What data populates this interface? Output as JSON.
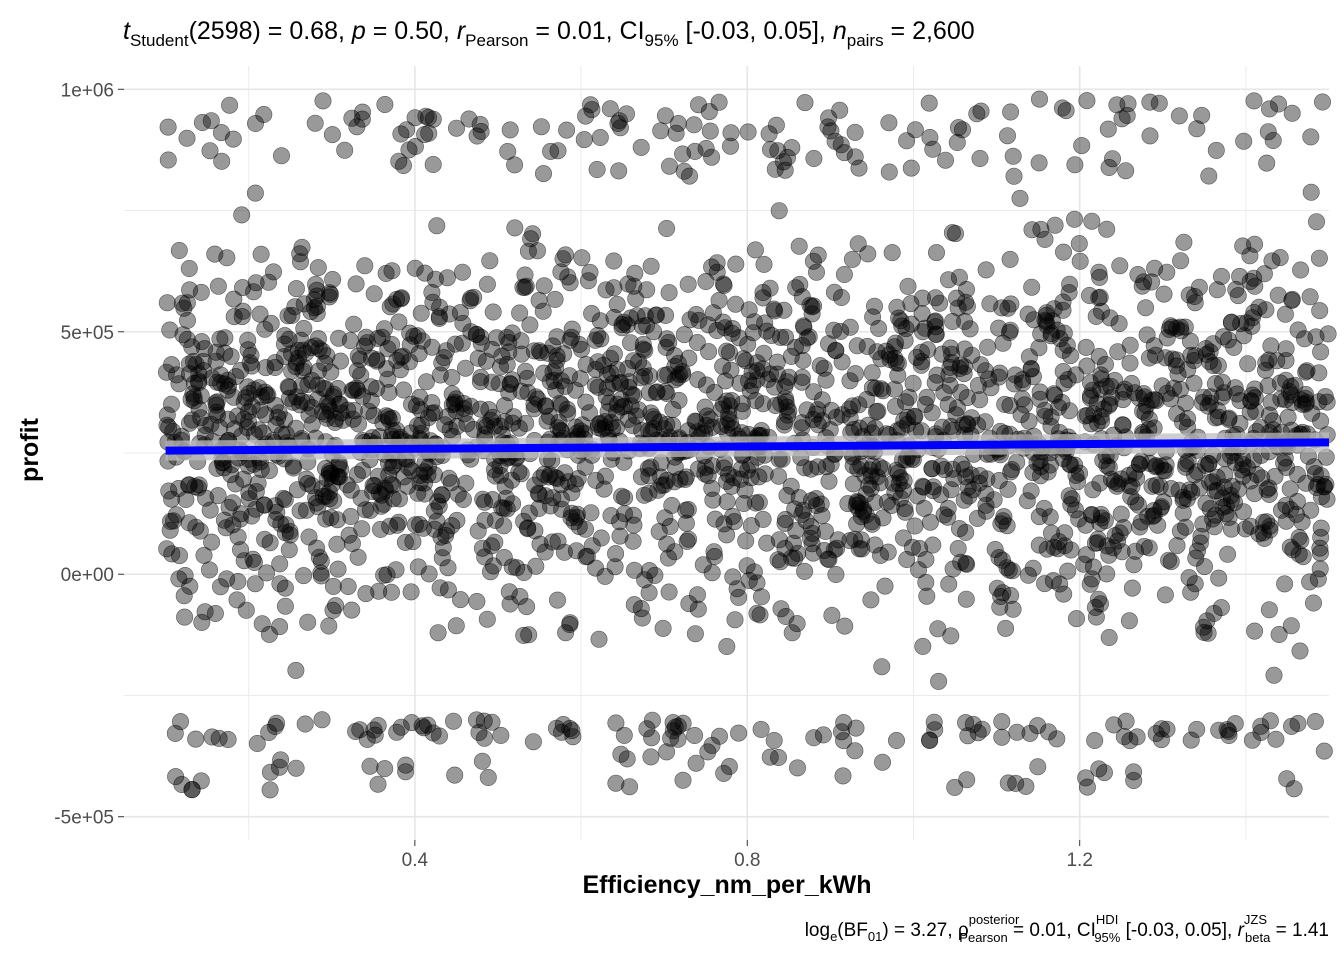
{
  "chart_data": {
    "type": "scatter",
    "subtitle": {
      "t_symbol": "t",
      "t_sub": "Student",
      "t_df": "(2598)",
      "t_value": " = 0.68, ",
      "p_symbol": "p",
      "p_value": " = 0.50, ",
      "r_symbol": "r",
      "r_sub": "Pearson",
      "r_value": " = 0.01, ",
      "ci_symbol": "CI",
      "ci_sub": "95%",
      "ci_value": " [-0.03, 0.05], ",
      "n_symbol": "n",
      "n_sub": "pairs",
      "n_value": " = 2,600"
    },
    "caption": {
      "bf_prefix": "log",
      "bf_sub": "e",
      "bf_paren_open": "(BF",
      "bf_index": "01",
      "bf_paren_close": ")",
      "bf_value": " = 3.27, ",
      "rho_symbol": "ρ",
      "rho_sup": "posterior",
      "rho_sub": "Pearson",
      "rho_value": " = 0.01, ",
      "ci_symbol": "CI",
      "ci_sup": "HDI",
      "ci_sub": "95%",
      "ci_value": " [-0.03, 0.05], ",
      "r_symbol": "r",
      "r_sup": "JZS",
      "r_sub": "beta",
      "r_value": " = 1.41"
    },
    "xlabel": "Efficiency_nm_per_kWh",
    "ylabel": "profit",
    "xlim": [
      0.05,
      1.5
    ],
    "ylim": [
      -500000,
      1000000
    ],
    "x_ticks": [
      {
        "value": 0.4,
        "label": "0.4"
      },
      {
        "value": 0.8,
        "label": "0.8"
      },
      {
        "value": 1.2,
        "label": "1.2"
      }
    ],
    "y_ticks": [
      {
        "value": -500000,
        "label": "-5e+05"
      },
      {
        "value": 0,
        "label": "0e+00"
      },
      {
        "value": 500000,
        "label": "5e+05"
      },
      {
        "value": 1000000,
        "label": "1e+06"
      }
    ],
    "grid": true,
    "points": {
      "n": 2600,
      "x_range": [
        0.1,
        1.5
      ],
      "y_range": [
        -450000,
        980000
      ],
      "color": "#000000",
      "opacity": 0.4
    },
    "fit_line": {
      "color": "#0000ff",
      "x": [
        0.1,
        1.5
      ],
      "y": [
        255000,
        272000
      ],
      "ci_band_color": "#bebebe"
    }
  }
}
